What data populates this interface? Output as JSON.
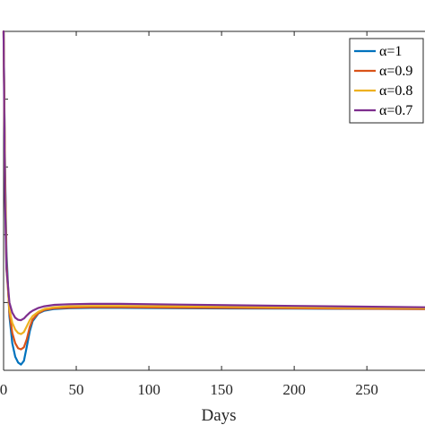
{
  "chart_data": {
    "type": "line",
    "xlabel": "Days",
    "ylabel": "",
    "xlim": [
      0,
      290
    ],
    "x_ticks": [
      0,
      50,
      100,
      150,
      200,
      250
    ],
    "x_tick_labels": [
      "0",
      "50",
      "100",
      "150",
      "200",
      "250"
    ],
    "ylim": [
      0,
      100
    ],
    "grid": false,
    "legend_position": "top-right",
    "series": [
      {
        "name": "α=1",
        "color": "#0072BD",
        "x": [
          0,
          1,
          2,
          4,
          6,
          8,
          10,
          12,
          14,
          16,
          18,
          20,
          24,
          28,
          35,
          45,
          60,
          80,
          120,
          200,
          290
        ],
        "y": [
          100,
          60,
          35,
          16,
          8,
          4,
          2.3,
          1.7,
          2.8,
          7,
          11.5,
          14.5,
          16.8,
          17.6,
          18.1,
          18.3,
          18.4,
          18.4,
          18.3,
          18.2,
          18.1
        ]
      },
      {
        "name": "α=0.9",
        "color": "#D95319",
        "x": [
          0,
          1,
          2,
          4,
          6,
          8,
          10,
          12,
          14,
          16,
          18,
          20,
          24,
          28,
          35,
          45,
          60,
          80,
          120,
          200,
          290
        ],
        "y": [
          100,
          58,
          32,
          17,
          11,
          8,
          6.5,
          6.2,
          6.8,
          9.2,
          12.8,
          15,
          16.9,
          17.8,
          18.3,
          18.5,
          18.6,
          18.6,
          18.5,
          18.3,
          18.1
        ]
      },
      {
        "name": "α=0.8",
        "color": "#EDB120",
        "x": [
          0,
          1,
          2,
          4,
          6,
          8,
          10,
          12,
          14,
          16,
          18,
          20,
          24,
          28,
          35,
          45,
          60,
          80,
          120,
          200,
          290
        ],
        "y": [
          100,
          55,
          30,
          18,
          14,
          12,
          11,
          10.7,
          11.3,
          13,
          14.8,
          16,
          17.3,
          18.1,
          18.6,
          18.9,
          19,
          19,
          18.9,
          18.6,
          18.3
        ]
      },
      {
        "name": "α=0.7",
        "color": "#7E2F8E",
        "x": [
          0,
          1,
          2,
          4,
          6,
          8,
          10,
          12,
          14,
          16,
          18,
          20,
          24,
          28,
          35,
          45,
          60,
          80,
          120,
          200,
          290
        ],
        "y": [
          100,
          50,
          30,
          20,
          17,
          15.5,
          14.9,
          14.8,
          15.3,
          16.2,
          17,
          17.6,
          18.4,
          18.9,
          19.3,
          19.5,
          19.6,
          19.6,
          19.4,
          19,
          18.6
        ]
      }
    ]
  }
}
